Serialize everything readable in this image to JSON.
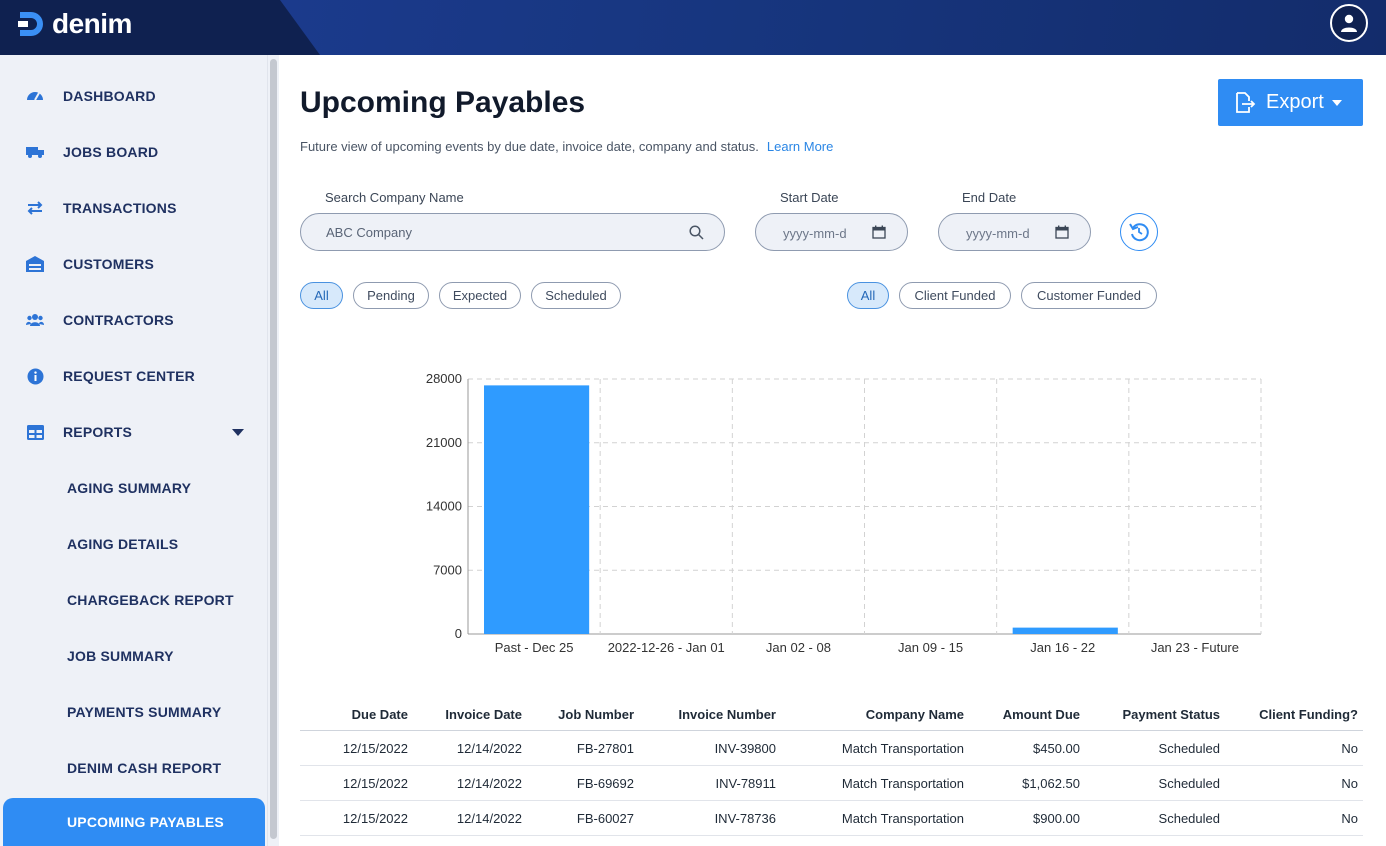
{
  "app": {
    "logo_text": "denim"
  },
  "sidebar": {
    "items": [
      {
        "label": "DASHBOARD",
        "icon": "dashboard-icon"
      },
      {
        "label": "JOBS BOARD",
        "icon": "truck-icon"
      },
      {
        "label": "TRANSACTIONS",
        "icon": "transfer-icon"
      },
      {
        "label": "CUSTOMERS",
        "icon": "warehouse-icon"
      },
      {
        "label": "CONTRACTORS",
        "icon": "people-icon"
      },
      {
        "label": "REQUEST CENTER",
        "icon": "info-icon"
      },
      {
        "label": "REPORTS",
        "icon": "table-icon"
      }
    ],
    "reports_items": [
      {
        "label": "AGING SUMMARY"
      },
      {
        "label": "AGING DETAILS"
      },
      {
        "label": "CHARGEBACK REPORT"
      },
      {
        "label": "JOB SUMMARY"
      },
      {
        "label": "PAYMENTS SUMMARY"
      },
      {
        "label": "DENIM CASH REPORT"
      },
      {
        "label": "UPCOMING PAYABLES"
      }
    ]
  },
  "header": {
    "title": "Upcoming Payables",
    "subtitle": "Future view of upcoming events by due date, invoice date, company and status.",
    "learn_more": "Learn More",
    "export_label": "Export"
  },
  "filters": {
    "search_label": "Search Company Name",
    "search_placeholder": "ABC Company",
    "start_date_label": "Start Date",
    "end_date_label": "End Date",
    "date_placeholder": "yyyy-mm-d",
    "status_chips": [
      "All",
      "Pending",
      "Expected",
      "Scheduled"
    ],
    "funding_chips": [
      "All",
      "Client Funded",
      "Customer Funded"
    ]
  },
  "chart_data": {
    "type": "bar",
    "categories": [
      "Past - Dec 25",
      "2022-12-26 - Jan 01",
      "Jan 02 - 08",
      "Jan 09 - 15",
      "Jan 16 - 22",
      "Jan 23 - Future"
    ],
    "values": [
      27300,
      0,
      0,
      0,
      700,
      0
    ],
    "ylim": [
      0,
      28000
    ],
    "yticks": [
      0,
      7000,
      14000,
      21000,
      28000
    ],
    "grid": true,
    "color": "#2f9bff"
  },
  "table": {
    "columns": [
      "Due Date",
      "Invoice Date",
      "Job Number",
      "Invoice Number",
      "Company Name",
      "Amount Due",
      "Payment Status",
      "Client Funding?"
    ],
    "rows": [
      [
        "12/15/2022",
        "12/14/2022",
        "FB-27801",
        "INV-39800",
        "Match Transportation",
        "$450.00",
        "Scheduled",
        "No"
      ],
      [
        "12/15/2022",
        "12/14/2022",
        "FB-69692",
        "INV-78911",
        "Match Transportation",
        "$1,062.50",
        "Scheduled",
        "No"
      ],
      [
        "12/15/2022",
        "12/14/2022",
        "FB-60027",
        "INV-78736",
        "Match Transportation",
        "$900.00",
        "Scheduled",
        "No"
      ]
    ]
  }
}
